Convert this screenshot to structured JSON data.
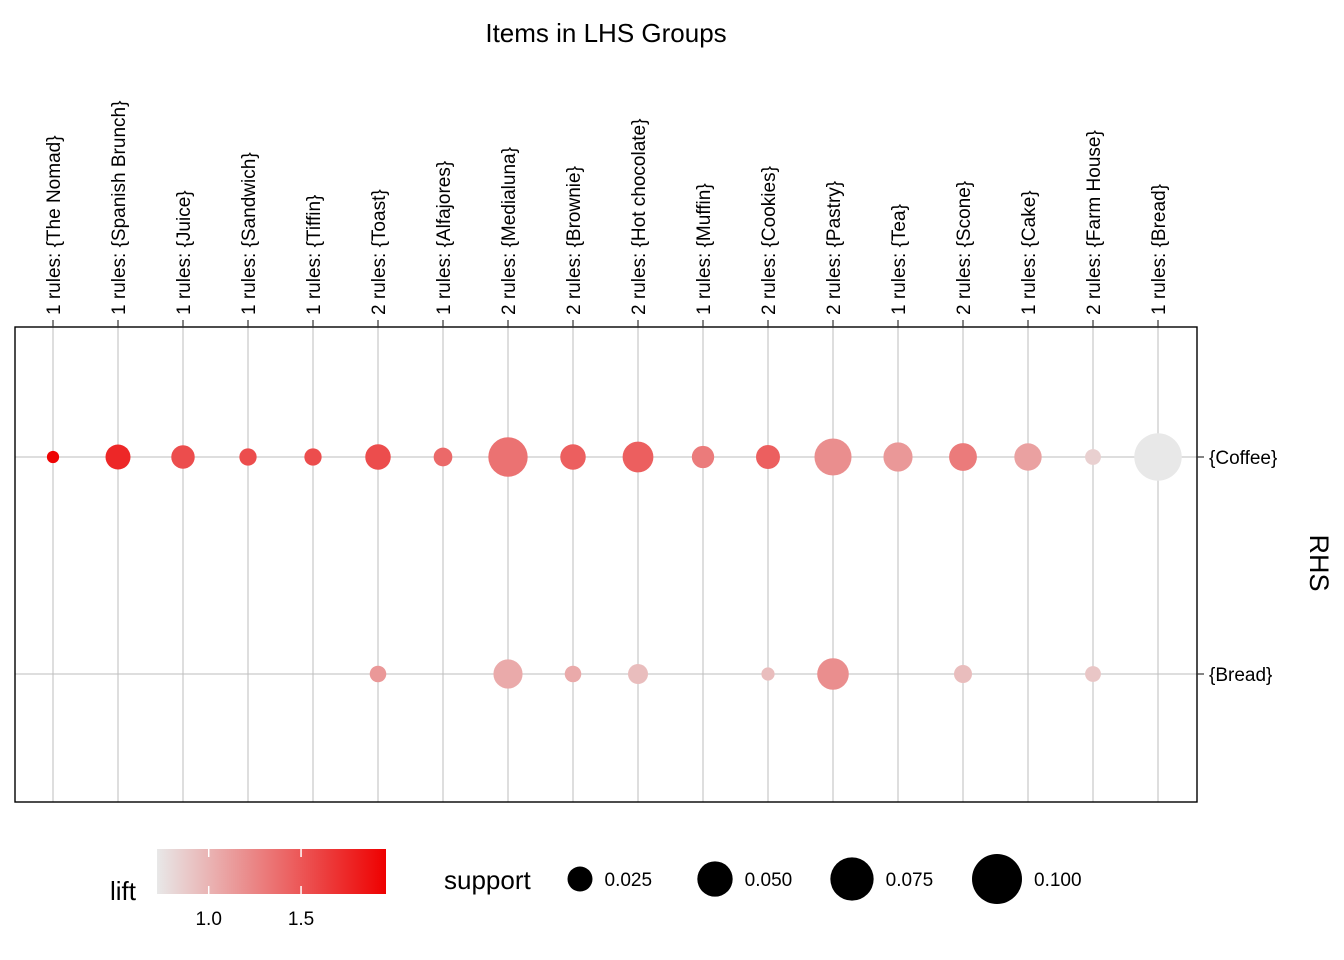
{
  "chart_data": {
    "type": "scatter",
    "title": "Items in LHS Groups",
    "x_position": "top",
    "y_axis_title": "RHS",
    "columns": [
      {
        "label": "1 rules: {The Nomad}"
      },
      {
        "label": "1 rules: {Spanish Brunch}"
      },
      {
        "label": "1 rules: {Juice}"
      },
      {
        "label": "1 rules: {Sandwich}"
      },
      {
        "label": "1 rules: {Tiffin}"
      },
      {
        "label": "2 rules: {Toast}"
      },
      {
        "label": "1 rules: {Alfajores}"
      },
      {
        "label": "2 rules: {Medialuna}"
      },
      {
        "label": "2 rules: {Brownie}"
      },
      {
        "label": "2 rules: {Hot chocolate}"
      },
      {
        "label": "1 rules: {Muffin}"
      },
      {
        "label": "2 rules: {Cookies}"
      },
      {
        "label": "2 rules: {Pastry}"
      },
      {
        "label": "1 rules: {Tea}"
      },
      {
        "label": "2 rules: {Scone}"
      },
      {
        "label": "1 rules: {Cake}"
      },
      {
        "label": "2 rules: {Farm House}"
      },
      {
        "label": "1 rules: {Bread}"
      }
    ],
    "rows": [
      "{Coffee}",
      "{Bread}"
    ],
    "points": [
      {
        "col": 0,
        "row": 0,
        "support": 0.006,
        "lift": 1.94
      },
      {
        "col": 1,
        "row": 0,
        "support": 0.025,
        "lift": 1.75
      },
      {
        "col": 2,
        "row": 0,
        "support": 0.022,
        "lift": 1.55
      },
      {
        "col": 3,
        "row": 0,
        "support": 0.012,
        "lift": 1.55
      },
      {
        "col": 4,
        "row": 0,
        "support": 0.012,
        "lift": 1.55
      },
      {
        "col": 5,
        "row": 0,
        "support": 0.026,
        "lift": 1.55
      },
      {
        "col": 6,
        "row": 0,
        "support": 0.014,
        "lift": 1.4
      },
      {
        "col": 7,
        "row": 0,
        "support": 0.062,
        "lift": 1.35
      },
      {
        "col": 8,
        "row": 0,
        "support": 0.026,
        "lift": 1.45
      },
      {
        "col": 9,
        "row": 0,
        "support": 0.038,
        "lift": 1.45
      },
      {
        "col": 10,
        "row": 0,
        "support": 0.02,
        "lift": 1.3
      },
      {
        "col": 11,
        "row": 0,
        "support": 0.023,
        "lift": 1.45
      },
      {
        "col": 12,
        "row": 0,
        "support": 0.055,
        "lift": 1.2
      },
      {
        "col": 13,
        "row": 0,
        "support": 0.034,
        "lift": 1.15
      },
      {
        "col": 14,
        "row": 0,
        "support": 0.031,
        "lift": 1.3
      },
      {
        "col": 15,
        "row": 0,
        "support": 0.03,
        "lift": 1.1
      },
      {
        "col": 16,
        "row": 0,
        "support": 0.01,
        "lift": 0.85
      },
      {
        "col": 17,
        "row": 0,
        "support": 0.09,
        "lift": 0.72
      },
      {
        "col": 5,
        "row": 1,
        "support": 0.011,
        "lift": 1.15
      },
      {
        "col": 7,
        "row": 1,
        "support": 0.034,
        "lift": 1.05
      },
      {
        "col": 8,
        "row": 1,
        "support": 0.011,
        "lift": 1.05
      },
      {
        "col": 9,
        "row": 1,
        "support": 0.016,
        "lift": 0.95
      },
      {
        "col": 11,
        "row": 1,
        "support": 0.007,
        "lift": 0.95
      },
      {
        "col": 12,
        "row": 1,
        "support": 0.04,
        "lift": 1.2
      },
      {
        "col": 14,
        "row": 1,
        "support": 0.013,
        "lift": 0.95
      },
      {
        "col": 16,
        "row": 1,
        "support": 0.01,
        "lift": 0.9
      }
    ],
    "lift_legend": {
      "title": "lift",
      "range": [
        0.72,
        1.96
      ],
      "ticks": [
        1.0,
        1.5
      ],
      "tick_labels": [
        "1.0",
        "1.5"
      ],
      "color_low": "#e8e8e8",
      "color_high": "#ee0000"
    },
    "support_legend": {
      "title": "support",
      "breaks": [
        0.025,
        0.05,
        0.075,
        0.1
      ],
      "labels": [
        "0.025",
        "0.050",
        "0.075",
        "0.100"
      ],
      "color": "#000000"
    }
  }
}
